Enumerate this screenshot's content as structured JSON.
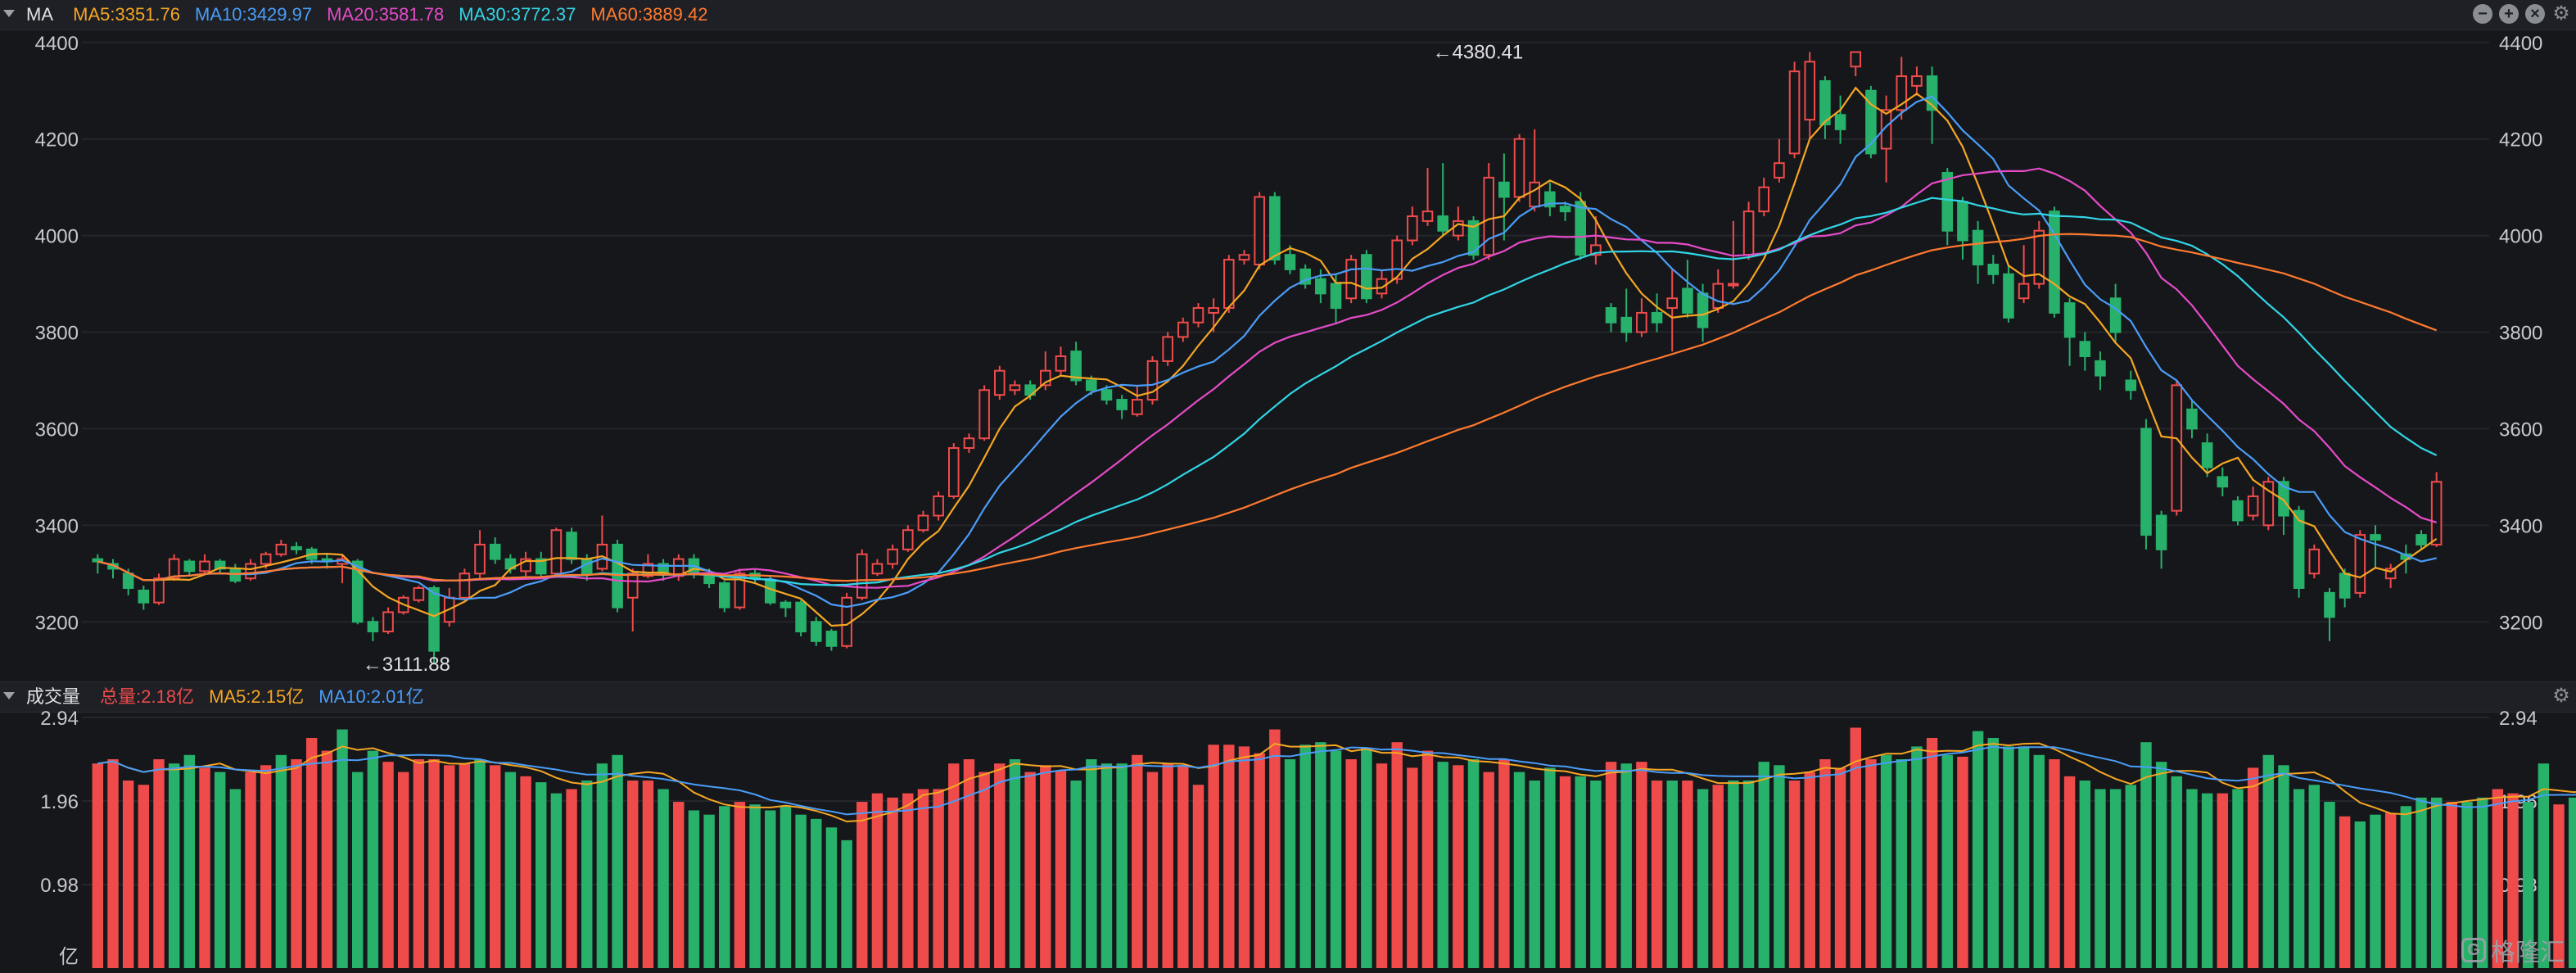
{
  "header": {
    "indicator": "MA",
    "ma_labels": [
      {
        "text": "MA5:3351.76",
        "color": "#f5a623"
      },
      {
        "text": "MA10:3429.97",
        "color": "#4a9df8"
      },
      {
        "text": "MA20:3581.78",
        "color": "#e64bc8"
      },
      {
        "text": "MA30:3772.37",
        "color": "#31d6e6"
      },
      {
        "text": "MA60:3889.42",
        "color": "#ff7a2e"
      }
    ]
  },
  "volume_header": {
    "indicator": "成交量",
    "labels": [
      {
        "text": "总量:2.18亿",
        "color": "#ef4b4b"
      },
      {
        "text": "MA5:2.15亿",
        "color": "#f5a623"
      },
      {
        "text": "MA10:2.01亿",
        "color": "#4a9df8"
      }
    ]
  },
  "controls": {
    "minus": "−",
    "plus": "+",
    "close": "×",
    "gear": "⚙"
  },
  "watermark": {
    "logo": "G",
    "text": "格隆汇"
  },
  "colors": {
    "up": "#ef4b4b",
    "down": "#27b16b",
    "grid": "#24262b"
  },
  "chart_data": [
    {
      "type": "candlestick",
      "y_ticks": [
        3200,
        3400,
        3600,
        3800,
        4000,
        4200,
        4400
      ],
      "ylim": [
        3080,
        4420
      ],
      "annotations": [
        {
          "text": "←4380.41",
          "index": 87,
          "value": 4380.41,
          "pos": "right"
        },
        {
          "text": "←3111.88",
          "index": 17,
          "value": 3111.88,
          "pos": "right"
        }
      ],
      "ohlc": [
        [
          3330,
          3325,
          3300,
          3340
        ],
        [
          3320,
          3310,
          3290,
          3330
        ],
        [
          3300,
          3270,
          3255,
          3310
        ],
        [
          3265,
          3240,
          3225,
          3275
        ],
        [
          3240,
          3290,
          3235,
          3300
        ],
        [
          3290,
          3330,
          3285,
          3340
        ],
        [
          3325,
          3305,
          3295,
          3330
        ],
        [
          3305,
          3325,
          3300,
          3340
        ],
        [
          3325,
          3310,
          3300,
          3330
        ],
        [
          3310,
          3285,
          3280,
          3320
        ],
        [
          3290,
          3320,
          3285,
          3330
        ],
        [
          3320,
          3340,
          3310,
          3345
        ],
        [
          3340,
          3360,
          3335,
          3370
        ],
        [
          3355,
          3350,
          3340,
          3365
        ],
        [
          3350,
          3330,
          3320,
          3355
        ],
        [
          3330,
          3325,
          3310,
          3340
        ],
        [
          3320,
          3330,
          3280,
          3340
        ],
        [
          3325,
          3200,
          3195,
          3330
        ],
        [
          3200,
          3180,
          3160,
          3210
        ],
        [
          3180,
          3220,
          3175,
          3230
        ],
        [
          3220,
          3250,
          3215,
          3255
        ],
        [
          3245,
          3270,
          3240,
          3275
        ],
        [
          3270,
          3140,
          3112,
          3275
        ],
        [
          3200,
          3250,
          3190,
          3270
        ],
        [
          3250,
          3300,
          3245,
          3310
        ],
        [
          3300,
          3360,
          3290,
          3390
        ],
        [
          3360,
          3330,
          3320,
          3375
        ],
        [
          3330,
          3310,
          3300,
          3340
        ],
        [
          3305,
          3330,
          3295,
          3345
        ],
        [
          3330,
          3300,
          3290,
          3345
        ],
        [
          3300,
          3390,
          3295,
          3395
        ],
        [
          3385,
          3330,
          3320,
          3395
        ],
        [
          3330,
          3300,
          3285,
          3340
        ],
        [
          3310,
          3360,
          3305,
          3420
        ],
        [
          3360,
          3230,
          3220,
          3370
        ],
        [
          3250,
          3300,
          3180,
          3310
        ],
        [
          3295,
          3320,
          3290,
          3340
        ],
        [
          3320,
          3300,
          3285,
          3330
        ],
        [
          3295,
          3330,
          3285,
          3340
        ],
        [
          3330,
          3300,
          3290,
          3340
        ],
        [
          3300,
          3280,
          3270,
          3310
        ],
        [
          3280,
          3230,
          3220,
          3285
        ],
        [
          3230,
          3300,
          3225,
          3310
        ],
        [
          3300,
          3290,
          3280,
          3310
        ],
        [
          3285,
          3240,
          3235,
          3295
        ],
        [
          3240,
          3230,
          3210,
          3245
        ],
        [
          3240,
          3180,
          3170,
          3245
        ],
        [
          3200,
          3160,
          3150,
          3210
        ],
        [
          3180,
          3150,
          3140,
          3185
        ],
        [
          3150,
          3250,
          3145,
          3260
        ],
        [
          3250,
          3340,
          3245,
          3350
        ],
        [
          3300,
          3320,
          3295,
          3330
        ],
        [
          3320,
          3350,
          3310,
          3360
        ],
        [
          3350,
          3390,
          3345,
          3400
        ],
        [
          3390,
          3420,
          3385,
          3430
        ],
        [
          3420,
          3460,
          3410,
          3470
        ],
        [
          3460,
          3560,
          3455,
          3570
        ],
        [
          3560,
          3580,
          3550,
          3590
        ],
        [
          3580,
          3680,
          3575,
          3690
        ],
        [
          3670,
          3720,
          3660,
          3730
        ],
        [
          3680,
          3690,
          3670,
          3700
        ],
        [
          3690,
          3670,
          3660,
          3700
        ],
        [
          3690,
          3720,
          3680,
          3760
        ],
        [
          3720,
          3750,
          3710,
          3770
        ],
        [
          3760,
          3700,
          3690,
          3780
        ],
        [
          3700,
          3680,
          3670,
          3710
        ],
        [
          3680,
          3660,
          3650,
          3690
        ],
        [
          3660,
          3640,
          3620,
          3670
        ],
        [
          3630,
          3660,
          3625,
          3690
        ],
        [
          3660,
          3740,
          3650,
          3750
        ],
        [
          3740,
          3790,
          3730,
          3800
        ],
        [
          3790,
          3820,
          3780,
          3830
        ],
        [
          3820,
          3850,
          3810,
          3860
        ],
        [
          3840,
          3850,
          3800,
          3870
        ],
        [
          3850,
          3950,
          3840,
          3960
        ],
        [
          3950,
          3960,
          3940,
          3970
        ],
        [
          3940,
          4080,
          3930,
          4090
        ],
        [
          4080,
          3950,
          3940,
          4090
        ],
        [
          3960,
          3930,
          3920,
          3980
        ],
        [
          3930,
          3900,
          3890,
          3940
        ],
        [
          3910,
          3880,
          3860,
          3930
        ],
        [
          3900,
          3850,
          3820,
          3920
        ],
        [
          3870,
          3950,
          3860,
          3960
        ],
        [
          3960,
          3870,
          3860,
          3970
        ],
        [
          3880,
          3910,
          3870,
          3930
        ],
        [
          3910,
          3990,
          3900,
          4000
        ],
        [
          3990,
          4040,
          3980,
          4060
        ],
        [
          4030,
          4050,
          4020,
          4140
        ],
        [
          4040,
          4010,
          4000,
          4150
        ],
        [
          4000,
          4030,
          3990,
          4060
        ],
        [
          4030,
          3960,
          3950,
          4040
        ],
        [
          3960,
          4120,
          3950,
          4150
        ],
        [
          4110,
          4080,
          3990,
          4170
        ],
        [
          4080,
          4200,
          4070,
          4210
        ],
        [
          4060,
          4110,
          4050,
          4220
        ],
        [
          4090,
          4060,
          4040,
          4110
        ],
        [
          4060,
          4050,
          4030,
          4070
        ],
        [
          4070,
          3960,
          3950,
          4090
        ],
        [
          3960,
          3980,
          3940,
          4040
        ],
        [
          3850,
          3820,
          3800,
          3860
        ],
        [
          3830,
          3800,
          3780,
          3890
        ],
        [
          3800,
          3840,
          3790,
          3870
        ],
        [
          3840,
          3820,
          3800,
          3880
        ],
        [
          3850,
          3870,
          3760,
          3930
        ],
        [
          3890,
          3840,
          3830,
          3950
        ],
        [
          3880,
          3810,
          3780,
          3900
        ],
        [
          3850,
          3900,
          3840,
          3930
        ],
        [
          3900,
          3900,
          3890,
          4030
        ],
        [
          3960,
          4050,
          3950,
          4070
        ],
        [
          4050,
          4100,
          4040,
          4120
        ],
        [
          4120,
          4150,
          4110,
          4200
        ],
        [
          4170,
          4340,
          4160,
          4360
        ],
        [
          4240,
          4360,
          4200,
          4380
        ],
        [
          4320,
          4230,
          4200,
          4330
        ],
        [
          4250,
          4220,
          4190,
          4290
        ],
        [
          4350,
          4380,
          4330,
          4380
        ],
        [
          4300,
          4170,
          4160,
          4310
        ],
        [
          4180,
          4260,
          4110,
          4290
        ],
        [
          4260,
          4330,
          4240,
          4370
        ],
        [
          4310,
          4330,
          4290,
          4350
        ],
        [
          4330,
          4260,
          4190,
          4350
        ],
        [
          4130,
          4010,
          3980,
          4140
        ],
        [
          4070,
          3990,
          3950,
          4080
        ],
        [
          4010,
          3940,
          3900,
          4030
        ],
        [
          3940,
          3920,
          3900,
          3960
        ],
        [
          3920,
          3830,
          3820,
          3940
        ],
        [
          3870,
          3900,
          3860,
          3980
        ],
        [
          3900,
          4010,
          3890,
          4030
        ],
        [
          4050,
          3840,
          3830,
          4060
        ],
        [
          3860,
          3790,
          3730,
          3870
        ],
        [
          3780,
          3750,
          3720,
          3800
        ],
        [
          3740,
          3710,
          3680,
          3760
        ],
        [
          3870,
          3800,
          3780,
          3900
        ],
        [
          3700,
          3680,
          3660,
          3720
        ],
        [
          3600,
          3380,
          3350,
          3620
        ],
        [
          3420,
          3350,
          3310,
          3430
        ],
        [
          3430,
          3690,
          3420,
          3700
        ],
        [
          3640,
          3600,
          3580,
          3660
        ],
        [
          3570,
          3520,
          3500,
          3590
        ],
        [
          3500,
          3480,
          3460,
          3520
        ],
        [
          3450,
          3410,
          3400,
          3460
        ],
        [
          3420,
          3460,
          3410,
          3480
        ],
        [
          3400,
          3490,
          3390,
          3500
        ],
        [
          3490,
          3420,
          3380,
          3500
        ],
        [
          3430,
          3270,
          3250,
          3440
        ],
        [
          3300,
          3350,
          3290,
          3360
        ],
        [
          3260,
          3210,
          3160,
          3270
        ],
        [
          3300,
          3250,
          3230,
          3310
        ],
        [
          3260,
          3380,
          3250,
          3390
        ],
        [
          3380,
          3370,
          3310,
          3400
        ],
        [
          3290,
          3310,
          3270,
          3320
        ],
        [
          3340,
          3330,
          3300,
          3360
        ],
        [
          3380,
          3360,
          3350,
          3390
        ],
        [
          3360,
          3490,
          3355,
          3510
        ]
      ]
    },
    {
      "type": "bar",
      "title": "成交量",
      "y_ticks": [
        0.98,
        1.96,
        2.94
      ],
      "y_tick_labels": [
        "0.98",
        "1.96",
        "2.94"
      ],
      "unit_label": "亿",
      "ylim": [
        0,
        2.94
      ],
      "values": [
        2.4,
        2.45,
        2.2,
        2.15,
        2.45,
        2.4,
        2.5,
        2.35,
        2.3,
        2.1,
        2.3,
        2.38,
        2.5,
        2.45,
        2.7,
        2.55,
        2.8,
        2.3,
        2.55,
        2.42,
        2.3,
        2.45,
        2.45,
        2.38,
        2.4,
        2.45,
        2.38,
        2.3,
        2.25,
        2.18,
        2.05,
        2.1,
        2.2,
        2.4,
        2.5,
        2.2,
        2.2,
        2.1,
        1.95,
        1.85,
        1.8,
        1.9,
        1.95,
        1.92,
        1.85,
        1.9,
        1.8,
        1.75,
        1.65,
        1.5,
        1.95,
        2.05,
        2.0,
        2.05,
        2.1,
        2.1,
        2.4,
        2.45,
        2.3,
        2.4,
        2.45,
        2.3,
        2.38,
        2.32,
        2.2,
        2.45,
        2.4,
        2.4,
        2.5,
        2.3,
        2.4,
        2.38,
        2.15,
        2.62,
        2.62,
        2.6,
        2.52,
        2.8,
        2.45,
        2.62,
        2.65,
        2.55,
        2.45,
        2.58,
        2.4,
        2.65,
        2.35,
        2.55,
        2.42,
        2.38,
        2.45,
        2.3,
        2.45,
        2.3,
        2.2,
        2.35,
        2.25,
        2.25,
        2.2,
        2.42,
        2.4,
        2.42,
        2.2,
        2.2,
        2.2,
        2.1,
        2.15,
        2.2,
        2.2,
        2.42,
        2.38,
        2.2,
        2.3,
        2.45,
        2.35,
        2.82,
        2.45,
        2.5,
        2.45,
        2.6,
        2.7,
        2.5,
        2.48,
        2.78,
        2.7,
        2.6,
        2.6,
        2.5,
        2.45,
        2.25,
        2.2,
        2.1,
        2.1,
        2.15,
        2.65,
        2.42,
        2.25,
        2.1,
        2.05,
        2.05,
        2.1,
        2.35,
        2.5,
        2.38,
        2.1,
        2.15,
        1.95,
        1.78,
        1.72,
        1.8,
        1.82,
        1.9,
        2.0,
        2.0,
        1.95,
        1.95,
        2.0,
        2.1,
        2.05,
        1.95,
        2.4,
        1.92,
        2.0,
        2.18
      ],
      "up_flags": [
        1,
        1,
        1,
        1,
        1,
        0,
        0,
        1,
        0,
        0,
        1,
        1,
        0,
        1,
        1,
        1,
        0,
        0,
        0,
        1,
        1,
        1,
        1,
        1,
        1,
        0,
        1,
        0,
        1,
        0,
        0,
        1,
        0,
        0,
        0,
        1,
        1,
        0,
        1,
        0,
        0,
        0,
        1,
        0,
        0,
        0,
        0,
        0,
        0,
        0,
        1,
        1,
        1,
        1,
        1,
        1,
        1,
        1,
        1,
        1,
        0,
        1,
        1,
        1,
        0,
        0,
        0,
        0,
        1,
        1,
        1,
        1,
        1,
        1,
        1,
        1,
        1,
        1,
        0,
        0,
        0,
        0,
        1,
        0,
        1,
        1,
        1,
        1,
        0,
        1,
        0,
        1,
        1,
        0,
        0,
        0,
        1,
        0,
        0,
        1,
        0,
        1,
        1,
        0,
        1,
        0,
        1,
        0,
        0,
        0,
        0,
        1,
        1,
        1,
        1,
        1,
        1,
        0,
        0,
        0,
        1,
        0,
        1,
        0,
        0,
        0,
        0,
        0,
        1,
        1,
        0,
        0,
        0,
        0,
        0,
        0,
        0,
        0,
        0,
        1,
        0,
        1,
        0,
        0,
        0,
        0,
        0,
        1,
        0,
        0,
        1,
        0,
        0,
        0,
        1,
        0,
        0,
        1,
        1,
        0,
        0,
        1
      ]
    }
  ]
}
